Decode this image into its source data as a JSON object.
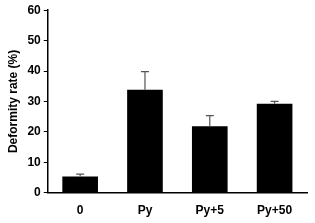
{
  "chart_data": {
    "type": "bar",
    "y_label": "Deformity rate (%)",
    "categories": [
      "0",
      "Py",
      "Py+5",
      "Py+50"
    ],
    "values": [
      5.3,
      33.8,
      21.8,
      29.2
    ],
    "errors": [
      0.8,
      6.0,
      3.5,
      0.8
    ],
    "color": "#000000",
    "ylim": [
      0,
      60
    ],
    "yticks": [
      0,
      10,
      20,
      30,
      40,
      50,
      60
    ],
    "grid": false
  }
}
